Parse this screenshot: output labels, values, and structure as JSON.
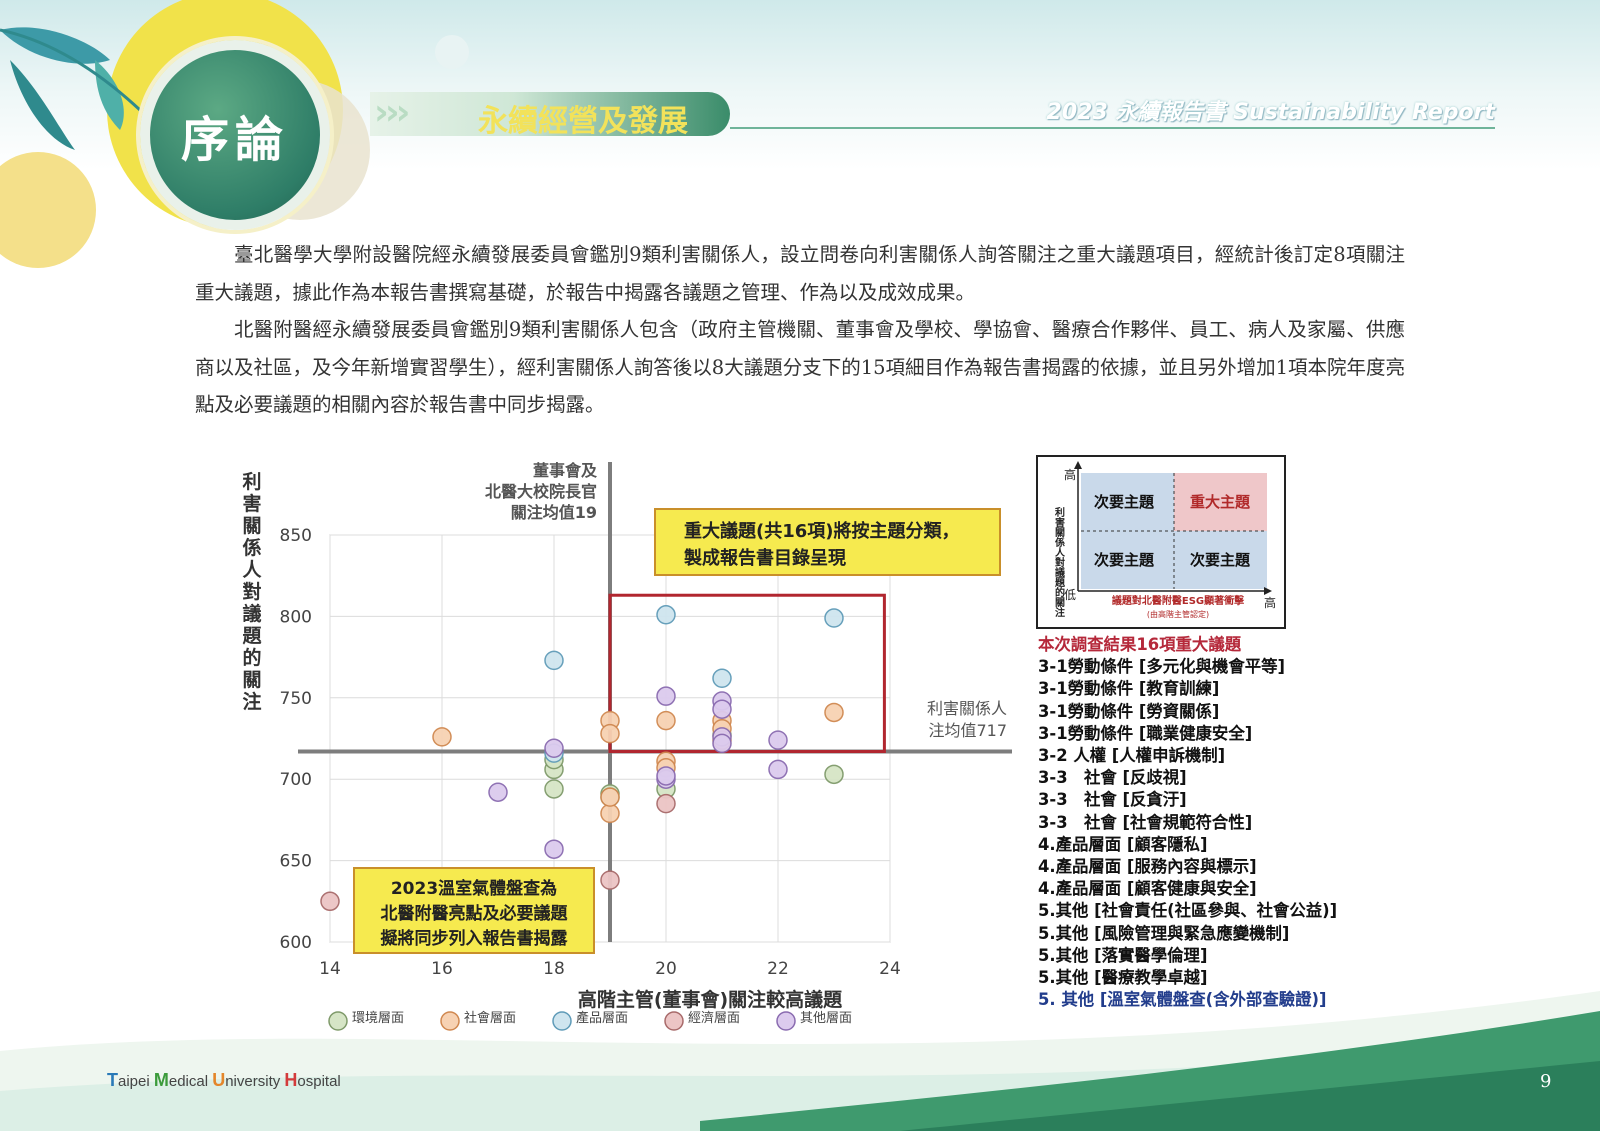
{
  "header": {
    "section_label": "序論",
    "title": "永續經營及發展",
    "arrows": "›››",
    "report_title": "2023 永續報告書 Sustainability Report"
  },
  "body": {
    "paragraph1": "臺北醫學大學附設醫院經永續發展委員會鑑別9類利害關係人，設立問卷向利害關係人詢答關注之重大議題項目，經統計後訂定8項關注重大議題，據此作為本報告書撰寫基礎，於報告中揭露各議題之管理、作為以及成效成果。",
    "paragraph2": "北醫附醫經永續發展委員會鑑別9類利害關係人包含（政府主管機關、董事會及學校、學協會、醫療合作夥伴、員工、病人及家屬、供應商以及社區，及今年新增實習學生），經利害關係人詢答後以8大議題分支下的15項細目作為報告書揭露的依據，並且另外增加1項本院年度亮點及必要議題的相關內容於報告書中同步揭露。"
  },
  "chart_data": {
    "type": "scatter",
    "xlabel": "高階主管(董事會)關注較高議題",
    "ylabel": "利害關係人對議題的關注",
    "xlim": [
      14,
      24
    ],
    "ylim": [
      600,
      850
    ],
    "x_ticks": [
      "14",
      "16",
      "18",
      "20",
      "22",
      "24"
    ],
    "y_ticks": [
      "600",
      "650",
      "700",
      "750",
      "800",
      "850"
    ],
    "grid": true,
    "vline": {
      "x": 19,
      "label_lines": [
        "董事會及",
        "北醫大校院長官",
        "關注均值19"
      ]
    },
    "hline": {
      "y": 717,
      "label_lines": [
        "利害關係人",
        "注均值717"
      ]
    },
    "annotation_top": [
      "重大議題(共16項)將按主題分類，",
      "製成報告書目錄呈現"
    ],
    "annotation_bottom": [
      "2023溫室氣體盤查為",
      "北醫附醫亮點及必要議題",
      "擬將同步列入報告書揭露"
    ],
    "series": [
      {
        "name": "環境層面",
        "color": "#d6e5c6",
        "stroke": "#7f9a6a",
        "points": [
          [
            18,
            706
          ],
          [
            18,
            694
          ],
          [
            19,
            691
          ],
          [
            19,
            689
          ],
          [
            20,
            694
          ],
          [
            21,
            727
          ],
          [
            23,
            703
          ],
          [
            18,
            712
          ]
        ]
      },
      {
        "name": "社會層面",
        "color": "#f7d2b3",
        "stroke": "#d08850",
        "points": [
          [
            16,
            726
          ],
          [
            19,
            736
          ],
          [
            19,
            728
          ],
          [
            19,
            679
          ],
          [
            20,
            736
          ],
          [
            20,
            711
          ],
          [
            20,
            707
          ],
          [
            21,
            736
          ],
          [
            21,
            731
          ],
          [
            21,
            724
          ],
          [
            23,
            741
          ],
          [
            19,
            689
          ]
        ]
      },
      {
        "name": "產品層面",
        "color": "#cfe5ef",
        "stroke": "#5f9bb8",
        "points": [
          [
            18,
            773
          ],
          [
            20,
            801
          ],
          [
            21,
            762
          ],
          [
            23,
            799
          ],
          [
            18,
            716
          ]
        ]
      },
      {
        "name": "經濟層面",
        "color": "#ecc5c5",
        "stroke": "#a86a6a",
        "points": [
          [
            14,
            625
          ],
          [
            19,
            638
          ],
          [
            20,
            685
          ]
        ]
      },
      {
        "name": "其他層面",
        "color": "#dccbee",
        "stroke": "#8a6bb0",
        "points": [
          [
            17,
            692
          ],
          [
            18,
            657
          ],
          [
            18,
            719
          ],
          [
            20,
            751
          ],
          [
            20,
            700
          ],
          [
            21,
            748
          ],
          [
            21,
            743
          ],
          [
            21,
            726
          ],
          [
            21,
            722
          ],
          [
            22,
            724
          ],
          [
            22,
            706
          ],
          [
            20,
            702
          ]
        ]
      }
    ]
  },
  "matrix": {
    "y_high": "高",
    "y_low": "低",
    "x_high": "高",
    "y_axis_label": "利害關係人對議題的關注",
    "x_axis_label": "議題對北醫附醫ESG顯著衝擊",
    "x_axis_sub": "(由高階主管認定)",
    "cells": [
      "次要主題",
      "重大主題",
      "次要主題",
      "次要主題"
    ]
  },
  "issues": {
    "heading": "本次調查結果16項重大議題",
    "items": [
      "3-1勞動條件 [多元化與機會平等]",
      "3-1勞動條件 [教育訓練]",
      "3-1勞動條件 [勞資關係]",
      "3-1勞動條件 [職業健康安全]",
      "3-2 人權 [人權申訴機制]",
      "3-3　社會 [反歧視]",
      "3-3　社會 [反貪汙]",
      "3-3　社會 [社會規範符合性]",
      "4.產品層面 [顧客隱私]",
      "4.產品層面 [服務內容與標示]",
      "4.產品層面 [顧客健康與安全]",
      "5.其他 [社會責任(社區參與、社會公益)]",
      "5.其他 [風險管理與緊急應變機制]",
      "5.其他 [落實醫學倫理]",
      "5.其他 [醫療教學卓越]"
    ],
    "last_item": "5. 其他 [溫室氣體盤查(含外部查驗證)]"
  },
  "footer": {
    "logo_t": "T",
    "logo_aipei": "aipei ",
    "logo_m": "M",
    "logo_edical": "edical ",
    "logo_u": "U",
    "logo_niversity": "niversity ",
    "logo_h": "H",
    "logo_ospital": "ospital",
    "page_number": "9"
  }
}
